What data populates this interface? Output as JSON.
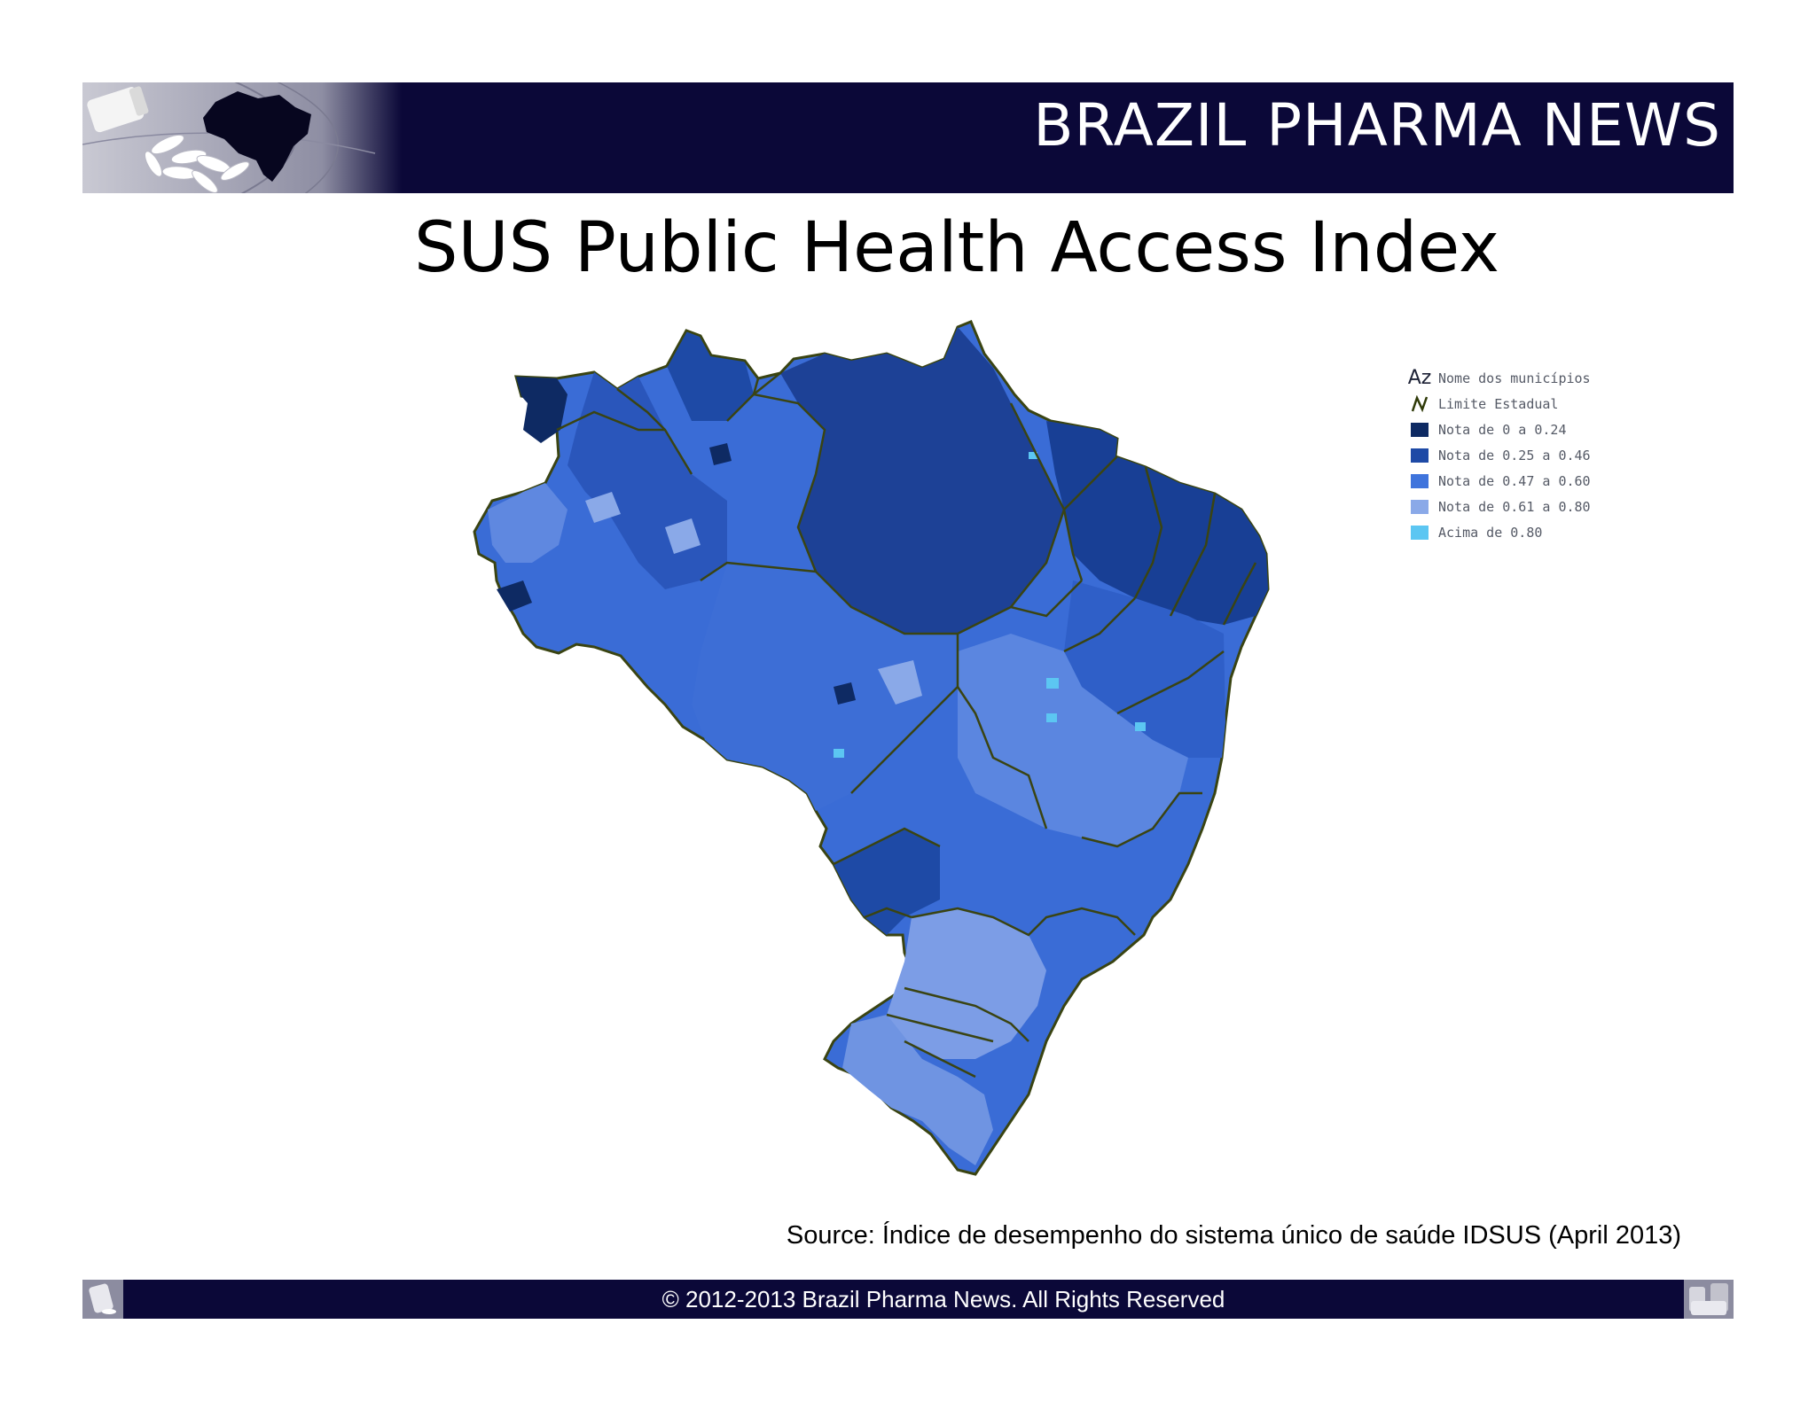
{
  "header": {
    "brand_title": "BRAZIL PHARMA NEWS"
  },
  "slide": {
    "title": "SUS Public Health Access Index"
  },
  "map": {
    "region": "Brazil",
    "legend": [
      {
        "symbol": "Az",
        "label": "Nome dos municípios",
        "kind": "text-symbol"
      },
      {
        "symbol": "line",
        "label": "Limite Estadual",
        "kind": "line",
        "color": "#2f3a08"
      },
      {
        "label": "Nota de 0 a 0.24",
        "kind": "swatch",
        "color": "#0e2a63",
        "range": [
          0,
          0.24
        ]
      },
      {
        "label": "Nota de 0.25 a 0.46",
        "kind": "swatch",
        "color": "#1e4aa6",
        "range": [
          0.25,
          0.46
        ]
      },
      {
        "label": "Nota de 0.47 a 0.60",
        "kind": "swatch",
        "color": "#3f74dc",
        "range": [
          0.47,
          0.6
        ]
      },
      {
        "label": "Nota de 0.61 a 0.80",
        "kind": "swatch",
        "color": "#8aa9e8",
        "range": [
          0.61,
          0.8
        ]
      },
      {
        "label": "Acima de 0.80",
        "kind": "swatch",
        "color": "#5cc6f2",
        "range": [
          0.8,
          1
        ]
      }
    ],
    "colors": {
      "state_border": "#3a4412",
      "base_fill": "#3a6cd6"
    }
  },
  "source": {
    "text": "Source:  Índice de desempenho do sistema único de saúde IDSUS (April 2013)"
  },
  "footer": {
    "copyright": "© 2012-2013  Brazil Pharma News. All Rights Reserved"
  }
}
